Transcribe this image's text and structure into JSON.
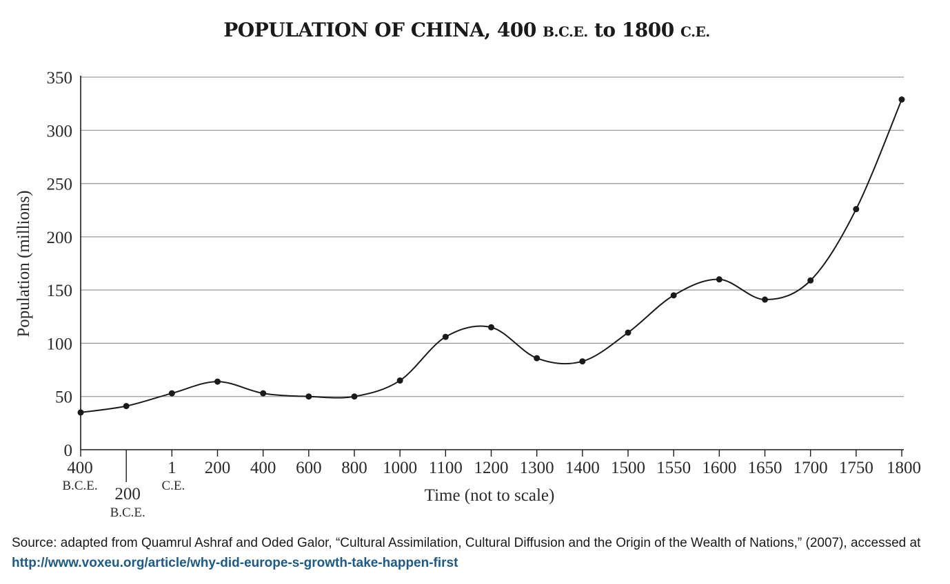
{
  "chart_data": {
    "type": "line",
    "title_parts": [
      "POPULATION OF CHINA, 400 ",
      "B.C.E.",
      " to 1800 ",
      "C.E."
    ],
    "ylabel": "Population (millions)",
    "xlabel": "Time (not to scale)",
    "ylim": [
      0,
      350
    ],
    "yticks": [
      0,
      50,
      100,
      150,
      200,
      250,
      300,
      350
    ],
    "grid": true,
    "categories": [
      {
        "label": "400",
        "sub": "B.C.E."
      },
      {
        "label": "200",
        "sub": "B.C.E."
      },
      {
        "label": "1",
        "sub": "C.E."
      },
      {
        "label": "200"
      },
      {
        "label": "400"
      },
      {
        "label": "600"
      },
      {
        "label": "800"
      },
      {
        "label": "1000"
      },
      {
        "label": "1100"
      },
      {
        "label": "1200"
      },
      {
        "label": "1300"
      },
      {
        "label": "1400"
      },
      {
        "label": "1500"
      },
      {
        "label": "1550"
      },
      {
        "label": "1600"
      },
      {
        "label": "1650"
      },
      {
        "label": "1700"
      },
      {
        "label": "1750"
      },
      {
        "label": "1800"
      }
    ],
    "series": [
      {
        "name": "Population",
        "values": [
          35,
          41,
          53,
          64,
          53,
          50,
          50,
          65,
          106,
          115,
          86,
          83,
          110,
          145,
          160,
          141,
          159,
          226,
          329
        ]
      }
    ]
  },
  "source": {
    "text": "Source: adapted from Quamrul Ashraf and Oded Galor, “Cultural Assimilation, Cultural Diffusion and the Origin of the Wealth of Nations,” (2007), accessed at ",
    "link": "http://www.voxeu.org/article/why-did-europe-s-growth-take-happen-first"
  },
  "colors": {
    "line": "#1a1a1a",
    "grid": "#9a9a9a",
    "link": "#1e5a86"
  }
}
